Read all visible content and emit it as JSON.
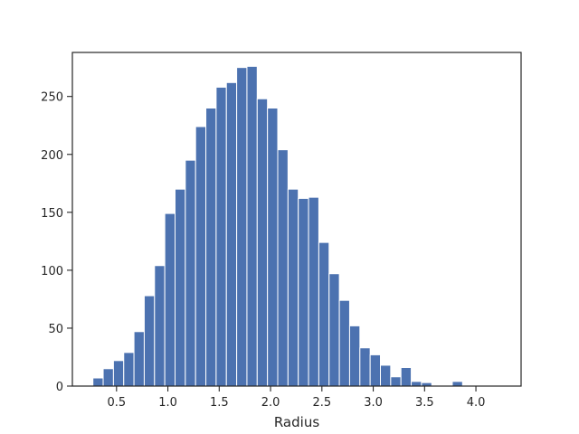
{
  "chart_data": {
    "type": "bar",
    "subtype": "histogram",
    "title": "",
    "xlabel": "Radius",
    "ylabel": "",
    "xlim": [
      0.07,
      4.44
    ],
    "ylim": [
      0,
      288
    ],
    "xticks": [
      0.5,
      1.0,
      1.5,
      2.0,
      2.5,
      3.0,
      3.5,
      4.0
    ],
    "xtick_labels": [
      "0.5",
      "1.0",
      "1.5",
      "2.0",
      "2.5",
      "3.0",
      "3.5",
      "4.0"
    ],
    "yticks": [
      0,
      50,
      100,
      150,
      200,
      250
    ],
    "ytick_labels": [
      "0",
      "50",
      "100",
      "150",
      "200",
      "250"
    ],
    "bar_color": "#4c72b0",
    "bin_start": 0.27,
    "bin_width": 0.1,
    "values": [
      7,
      15,
      22,
      29,
      47,
      78,
      104,
      149,
      170,
      195,
      224,
      240,
      258,
      262,
      275,
      276,
      248,
      240,
      204,
      170,
      162,
      163,
      124,
      97,
      74,
      52,
      33,
      27,
      18,
      8,
      16,
      4,
      3,
      0,
      0,
      4
    ],
    "grid": false,
    "legend": "none"
  }
}
